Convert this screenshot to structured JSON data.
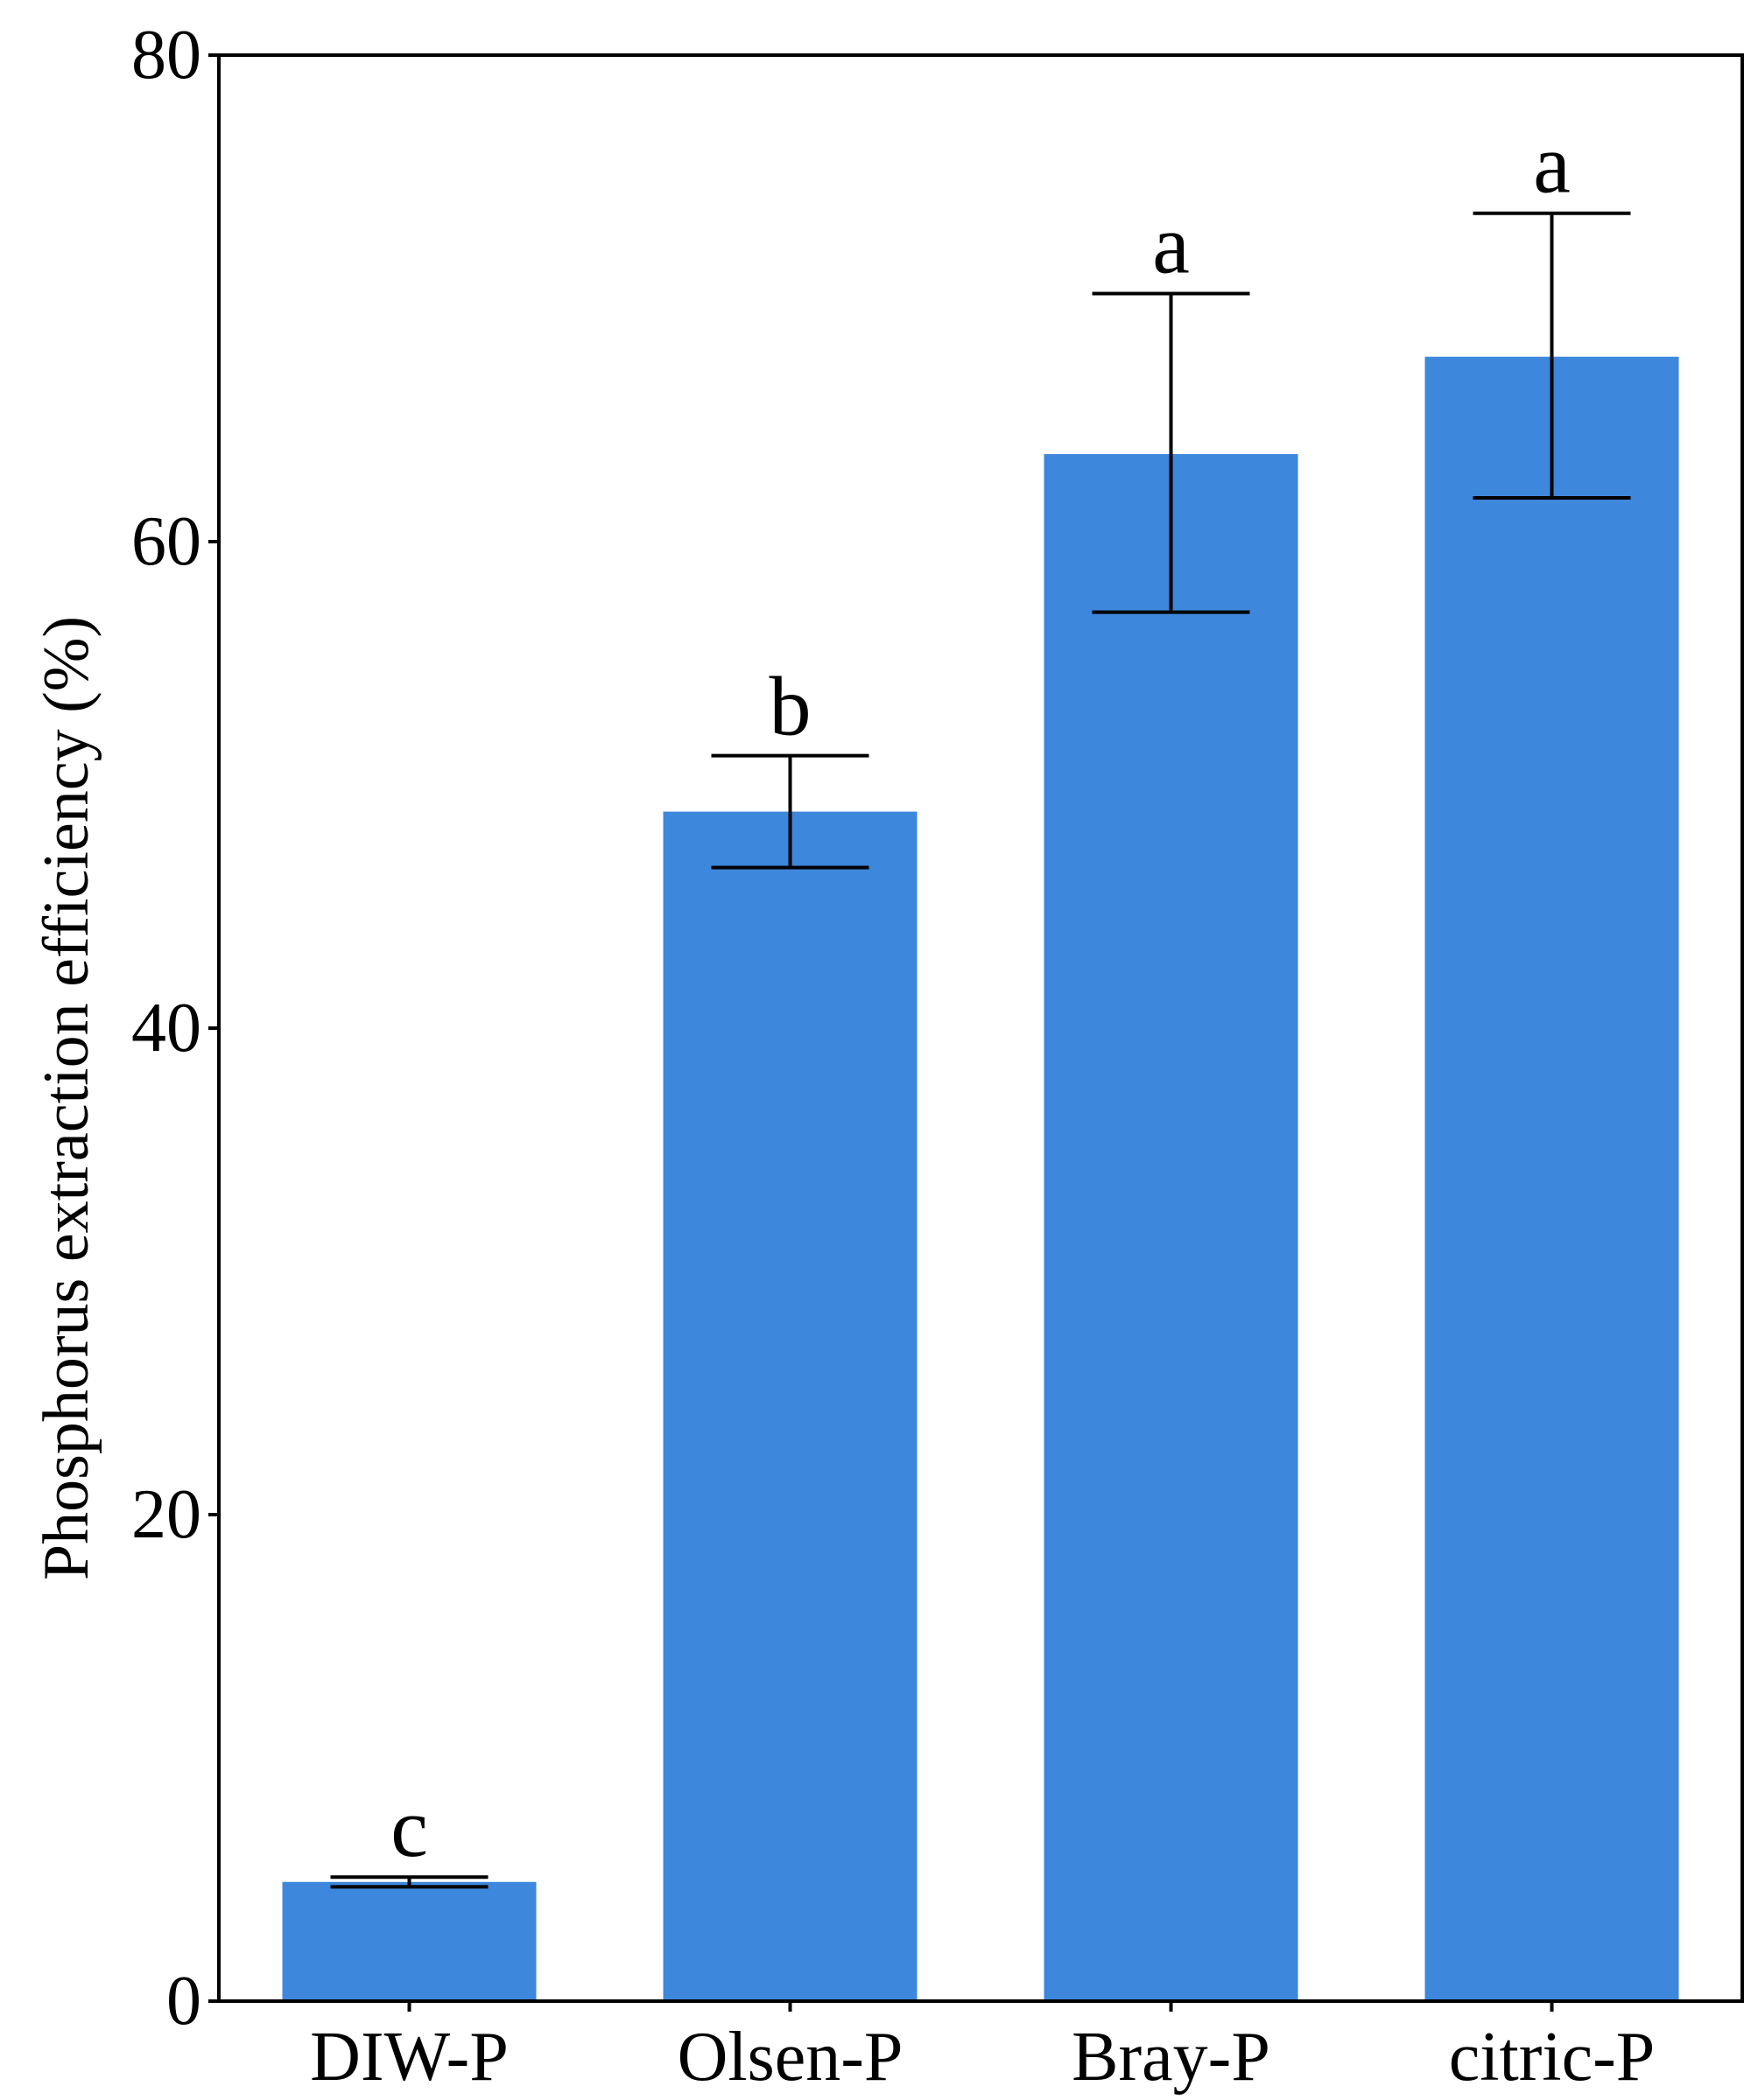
{
  "chart_data": {
    "type": "bar",
    "title": "",
    "xlabel": "",
    "ylabel": "Phosphorus extraction efficiency (%)",
    "categories": [
      "DIW-P",
      "Olsen-P",
      "Bray-P",
      "citric-P"
    ],
    "values": [
      4.9,
      48.9,
      63.6,
      67.6
    ],
    "error_low": [
      4.7,
      46.6,
      57.1,
      61.8
    ],
    "error_high": [
      5.1,
      51.2,
      70.2,
      73.5
    ],
    "significance_labels": [
      "c",
      "b",
      "a",
      "a"
    ],
    "ylim": [
      0,
      80
    ],
    "yticks": [
      0,
      20,
      40,
      60,
      80
    ],
    "ytick_labels": [
      "0",
      "20",
      "40",
      "60",
      "80"
    ],
    "grid": false,
    "legend": "none",
    "colors": {
      "bar": "#3D87DC",
      "axis": "#000000",
      "error_bar": "#000000"
    }
  }
}
